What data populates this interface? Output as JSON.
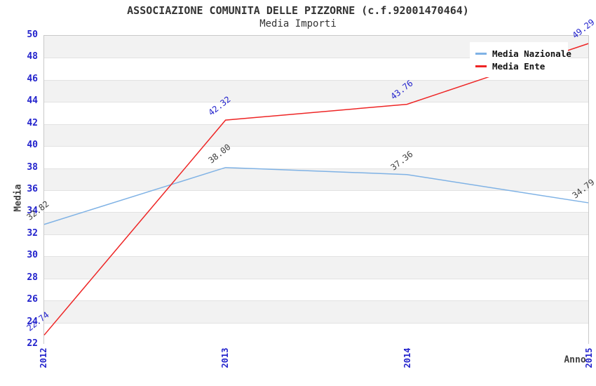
{
  "header": {
    "title": "ASSOCIAZIONE COMUNITA DELLE PIZZORNE (c.f.92001470464)",
    "subtitle": "Media Importi"
  },
  "legend": {
    "items": [
      {
        "label": "Media Nazionale",
        "color": "#7fb2e5"
      },
      {
        "label": "Media Ente",
        "color": "#ee2525"
      }
    ]
  },
  "chart_data": {
    "type": "line",
    "title": "ASSOCIAZIONE COMUNITA DELLE PIZZORNE (c.f.92001470464)",
    "subtitle": "Media Importi",
    "xlabel": "Anno",
    "ylabel": "Media",
    "x": [
      "2012",
      "2013",
      "2014",
      "2015"
    ],
    "series": [
      {
        "name": "Media Nazionale",
        "color": "#7fb2e5",
        "label_color": "#404040",
        "values": [
          32.82,
          38.0,
          37.36,
          34.79
        ]
      },
      {
        "name": "Media Ente",
        "color": "#ee2525",
        "label_color": "#2222cc",
        "values": [
          22.74,
          42.32,
          43.76,
          49.29
        ]
      }
    ],
    "ylim": [
      22,
      50
    ],
    "ytick_step": 2,
    "grid": true,
    "legend_position": "top-right",
    "band_colors": [
      "#f2f2f2",
      "#ffffff"
    ],
    "tick_label_color": "#2222cc",
    "axis_title_color": "#404040"
  }
}
